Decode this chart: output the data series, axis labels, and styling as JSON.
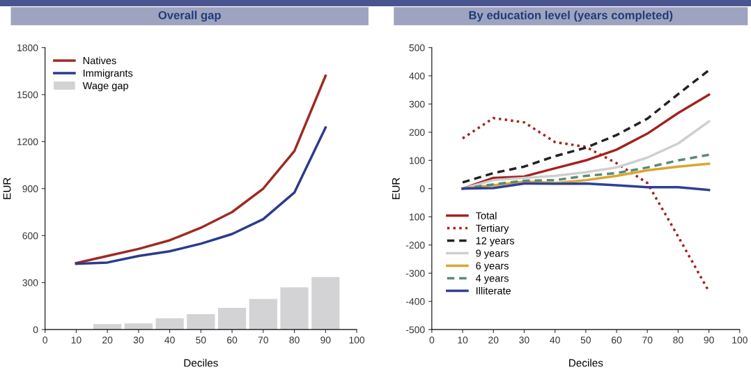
{
  "chart_data": [
    {
      "type": "line",
      "title": "Overall gap",
      "xlabel": "Deciles",
      "ylabel": "EUR",
      "x": [
        10,
        20,
        30,
        40,
        50,
        60,
        70,
        80,
        90
      ],
      "series": [
        {
          "name": "Natives",
          "color": "#9e2a23",
          "values": [
            425,
            470,
            515,
            570,
            650,
            750,
            900,
            1140,
            1620
          ]
        },
        {
          "name": "Immigrants",
          "color": "#2b3b8c",
          "values": [
            420,
            428,
            470,
            500,
            548,
            610,
            705,
            875,
            1290
          ]
        },
        {
          "name": "Wage gap",
          "type": "bar",
          "color": "#d3d3d5",
          "values": [
            null,
            35,
            40,
            72,
            98,
            138,
            195,
            270,
            335
          ]
        }
      ],
      "xlim": [
        0,
        100
      ],
      "xticks": [
        0,
        10,
        20,
        30,
        40,
        50,
        60,
        70,
        80,
        90,
        100
      ],
      "ylim": [
        0,
        1800
      ],
      "yticks": [
        0,
        300,
        600,
        900,
        1200,
        1500,
        1800
      ],
      "legend": "top left",
      "grid": false
    },
    {
      "type": "line",
      "title": "By education level (years completed)",
      "xlabel": "Deciles",
      "ylabel": "EUR",
      "x": [
        10,
        20,
        30,
        40,
        50,
        60,
        70,
        80,
        90
      ],
      "series": [
        {
          "name": "Total",
          "color": "#a3231f",
          "values": [
            0,
            38,
            43,
            72,
            100,
            138,
            195,
            268,
            333
          ]
        },
        {
          "name": "Tertiary",
          "color": "#a3231f",
          "line_style": "dotted",
          "values": [
            178,
            250,
            235,
            165,
            148,
            90,
            20,
            -170,
            -365
          ]
        },
        {
          "name": "12 years",
          "color": "#222222",
          "line_style": "dashed",
          "values": [
            22,
            55,
            78,
            115,
            145,
            190,
            248,
            335,
            420
          ]
        },
        {
          "name": "9 years",
          "color": "#cfcfcf",
          "values": [
            0,
            30,
            38,
            45,
            58,
            75,
            110,
            160,
            238
          ]
        },
        {
          "name": "6 years",
          "color": "#d8a630",
          "values": [
            0,
            12,
            25,
            20,
            30,
            45,
            65,
            78,
            88
          ]
        },
        {
          "name": "4 years",
          "color": "#5a8a78",
          "line_style": "dashed",
          "values": [
            0,
            15,
            28,
            30,
            45,
            55,
            75,
            100,
            120
          ]
        },
        {
          "name": "Illiterate",
          "color": "#2f3f98",
          "values": [
            0,
            2,
            18,
            17,
            18,
            12,
            5,
            5,
            -5
          ]
        }
      ],
      "xlim": [
        0,
        100
      ],
      "xticks": [
        0,
        10,
        20,
        30,
        40,
        50,
        60,
        70,
        80,
        90,
        100
      ],
      "ylim": [
        -500,
        500
      ],
      "yticks": [
        {
          "value": -500,
          "label": "-500"
        },
        {
          "value": -400,
          "label": "-400"
        },
        {
          "value": -300,
          "label": "-300"
        },
        {
          "value": -200,
          "label": "-200"
        },
        {
          "value": -100,
          "label": "100"
        },
        0,
        100,
        200,
        300,
        400,
        500
      ],
      "legend": "left",
      "grid": false
    }
  ]
}
